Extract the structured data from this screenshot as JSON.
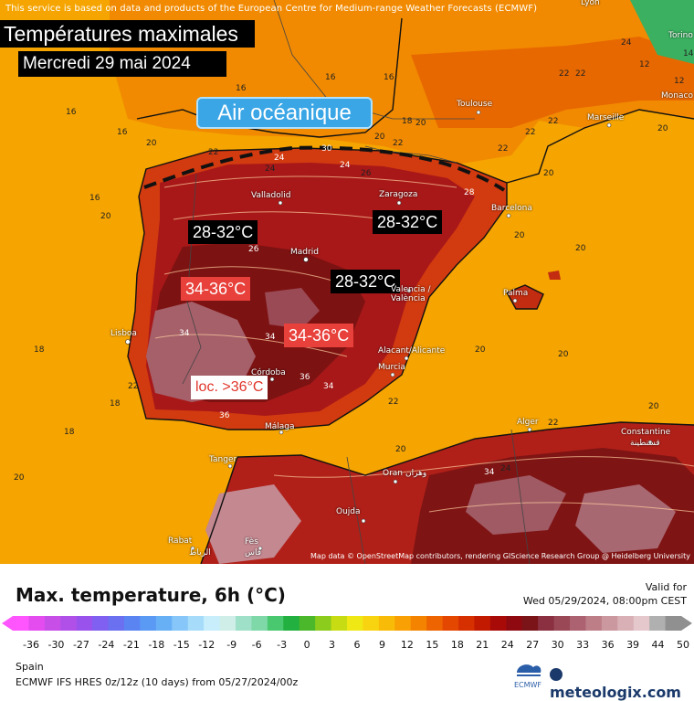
{
  "map": {
    "disclaimer": "This service is based on data and products of the European Centre for Medium-range Weather Forecasts (ECMWF)",
    "title": "Températures maximales",
    "date": "Mercredi 29 mai 2024",
    "air_label": "Air océanique",
    "regions": [
      {
        "text": "28-32°C",
        "style": "black"
      },
      {
        "text": "28-32°C",
        "style": "black"
      },
      {
        "text": "28-32°C",
        "style": "black"
      },
      {
        "text": "34-36°C",
        "style": "red"
      },
      {
        "text": "34-36°C",
        "style": "red"
      },
      {
        "text": "loc. >36°C",
        "style": "white"
      }
    ],
    "cities": [
      "Lyon",
      "Torino",
      "Monaco",
      "Toulouse",
      "Marseille",
      "Valladolid",
      "Zaragoza",
      "Barcelona",
      "Madrid",
      "Palma",
      "Valencia / València",
      "Lisboa",
      "Alacant/Alicante",
      "Murcia",
      "Córdoba",
      "Málaga",
      "Alger",
      "Constantine",
      "قسنطينة",
      "Tanger",
      "Oran",
      "وهران",
      "Oujda",
      "Rabat",
      "الرباط",
      "Fès",
      "فاس"
    ],
    "isotherms": [
      "16",
      "16",
      "16",
      "16",
      "16",
      "16",
      "18",
      "18",
      "18",
      "18",
      "20",
      "20",
      "20",
      "20",
      "20",
      "20",
      "20",
      "20",
      "20",
      "20",
      "20",
      "22",
      "22",
      "22",
      "22",
      "22",
      "22",
      "22",
      "24",
      "24",
      "24",
      "24",
      "12",
      "12",
      "14",
      "26",
      "30",
      "34",
      "34",
      "34",
      "36",
      "36",
      "22",
      "28",
      "20",
      "22",
      "24",
      "26",
      "34",
      "20",
      "22"
    ],
    "attribution": "Map data © OpenStreetMap contributors, rendering GIScience Research Group @ Heidelberg University",
    "colors": {
      "sea_orange": "#f5a200",
      "land_hot": "#a01a14",
      "dark_hot": "#7a1010",
      "pinkish": "#b07078",
      "yellow": "#f5d000"
    }
  },
  "footer": {
    "title": "Max. temperature, 6h (°C)",
    "valid_label": "Valid for",
    "valid_time": "Wed 05/29/2024, 08:00pm CEST",
    "scale_ticks": [
      "-36",
      "-30",
      "-27",
      "-24",
      "-21",
      "-18",
      "-15",
      "-12",
      "-9",
      "-6",
      "-3",
      "0",
      "3",
      "6",
      "9",
      "12",
      "15",
      "18",
      "21",
      "24",
      "27",
      "30",
      "33",
      "36",
      "39",
      "44",
      "50"
    ],
    "scale_colors": [
      "#ff55ff",
      "#e44cf0",
      "#c84ee8",
      "#b050e8",
      "#9a52ec",
      "#8060f0",
      "#6a70f0",
      "#5a84f2",
      "#5a9af4",
      "#68b0f6",
      "#86c6f8",
      "#a6dcfa",
      "#c8eefc",
      "#cfeee8",
      "#9fe0c8",
      "#7fd8a8",
      "#4ac870",
      "#22b040",
      "#4ab82a",
      "#8ccc1c",
      "#c8dc14",
      "#f0e814",
      "#f8d410",
      "#f8bc08",
      "#f8a004",
      "#f48400",
      "#ee6400",
      "#e44800",
      "#d63000",
      "#c21a00",
      "#a80a08",
      "#8e0a10",
      "#7a1418",
      "#8a3040",
      "#9a4856",
      "#ac6270",
      "#bd7e88",
      "#cc98a0",
      "#d8b0b6",
      "#e4c8cc",
      "#b0b0b0",
      "#909090"
    ],
    "region": "Spain",
    "model": "ECMWF IFS HRES 0z/12z (10 days) from 05/27/2024/00z",
    "ecmwf_logo": "ECMWF",
    "brand": "meteologix.com"
  }
}
